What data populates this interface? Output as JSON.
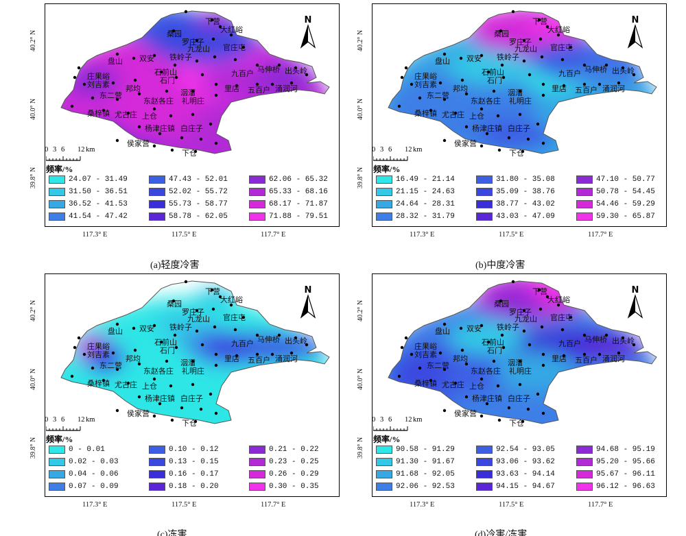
{
  "axes": {
    "lat_labels": [
      "40.2° N",
      "40.0° N",
      "39.8° N"
    ],
    "lon_labels": [
      "117.3° E",
      "117.5° E",
      "117.7° E"
    ]
  },
  "scale": {
    "numbers": [
      "0",
      "3",
      "6",
      "12"
    ],
    "unit": "km"
  },
  "north_label": "N",
  "legend_title": "频率/%",
  "places": [
    "下营",
    "大红峪",
    "桑园",
    "罗庄子",
    "九龙山",
    "官庄屯",
    "盘山",
    "双安",
    "铁岭子",
    "石前山",
    "石门",
    "庄果峪",
    "刘吉素",
    "马伸桥",
    "出头岭",
    "九百户",
    "里店",
    "五百户",
    "涌润河",
    "东二营",
    "邦均",
    "洇溜",
    "东赵各庄",
    "礼明庄",
    "桑梓镇",
    "尤古庄",
    "上仓",
    "杨津庄镇",
    "白庄子",
    "侯家营",
    "下仓"
  ],
  "panels": [
    {
      "caption": "(a)轻度冷害",
      "colors": [
        "#2fe6e6",
        "#33c8e6",
        "#36a8e4",
        "#3d7fe6",
        "#3c5fe4",
        "#3b48e0",
        "#3a2ed8",
        "#5a26d8",
        "#8c2ad6",
        "#b22ad6",
        "#d42ad9",
        "#f032e8"
      ],
      "legend": [
        "24.07 - 31.49",
        "31.50 - 36.51",
        "36.52 - 41.53",
        "41.54 - 47.42",
        "47.43 - 52.01",
        "52.02 - 55.72",
        "55.73 - 58.77",
        "58.78 - 62.05",
        "62.06 - 65.32",
        "65.33 - 68.16",
        "68.17 - 71.87",
        "71.88 - 79.51"
      ]
    },
    {
      "caption": "(b)中度冷害",
      "colors": [
        "#2fe6e6",
        "#33c8e6",
        "#36a8e4",
        "#3d7fe6",
        "#3c5fe4",
        "#3b48e0",
        "#3a2ed8",
        "#5a26d8",
        "#8c2ad6",
        "#b22ad6",
        "#d42ad9",
        "#f032e8"
      ],
      "legend": [
        "16.49 - 21.14",
        "21.15 - 24.63",
        "24.64 - 28.31",
        "28.32 - 31.79",
        "31.80 - 35.08",
        "35.09 - 38.76",
        "38.77 - 43.02",
        "43.03 - 47.09",
        "47.10 - 50.77",
        "50.78 - 54.45",
        "54.46 - 59.29",
        "59.30 - 65.87"
      ]
    },
    {
      "caption": "(c)冻害",
      "colors": [
        "#2fe6e6",
        "#33c8e6",
        "#36a8e4",
        "#3d7fe6",
        "#3c5fe4",
        "#3b48e0",
        "#3a2ed8",
        "#5a26d8",
        "#8c2ad6",
        "#b22ad6",
        "#d42ad9",
        "#f032e8"
      ],
      "legend": [
        "0 - 0.01",
        "0.02 - 0.03",
        "0.04 - 0.06",
        "0.07 - 0.09",
        "0.10 - 0.12",
        "0.13 - 0.15",
        "0.16 - 0.17",
        "0.18 - 0.20",
        "0.21 - 0.22",
        "0.23 - 0.25",
        "0.26 - 0.29",
        "0.30 - 0.35"
      ]
    },
    {
      "caption": "(d)冷害/冻害",
      "colors": [
        "#2fe6e6",
        "#33c8e6",
        "#36a8e4",
        "#3d7fe6",
        "#3c5fe4",
        "#3b48e0",
        "#3a2ed8",
        "#5a26d8",
        "#8c2ad6",
        "#b22ad6",
        "#d42ad9",
        "#f032e8"
      ],
      "legend": [
        "90.58 - 91.29",
        "91.30 - 91.67",
        "91.68 - 92.05",
        "92.06 - 92.53",
        "92.54 - 93.05",
        "93.06 - 93.62",
        "93.63 - 94.14",
        "94.15 - 94.67",
        "94.68 - 95.19",
        "95.20 - 95.66",
        "95.67 - 96.11",
        "96.12 - 96.63"
      ]
    }
  ]
}
